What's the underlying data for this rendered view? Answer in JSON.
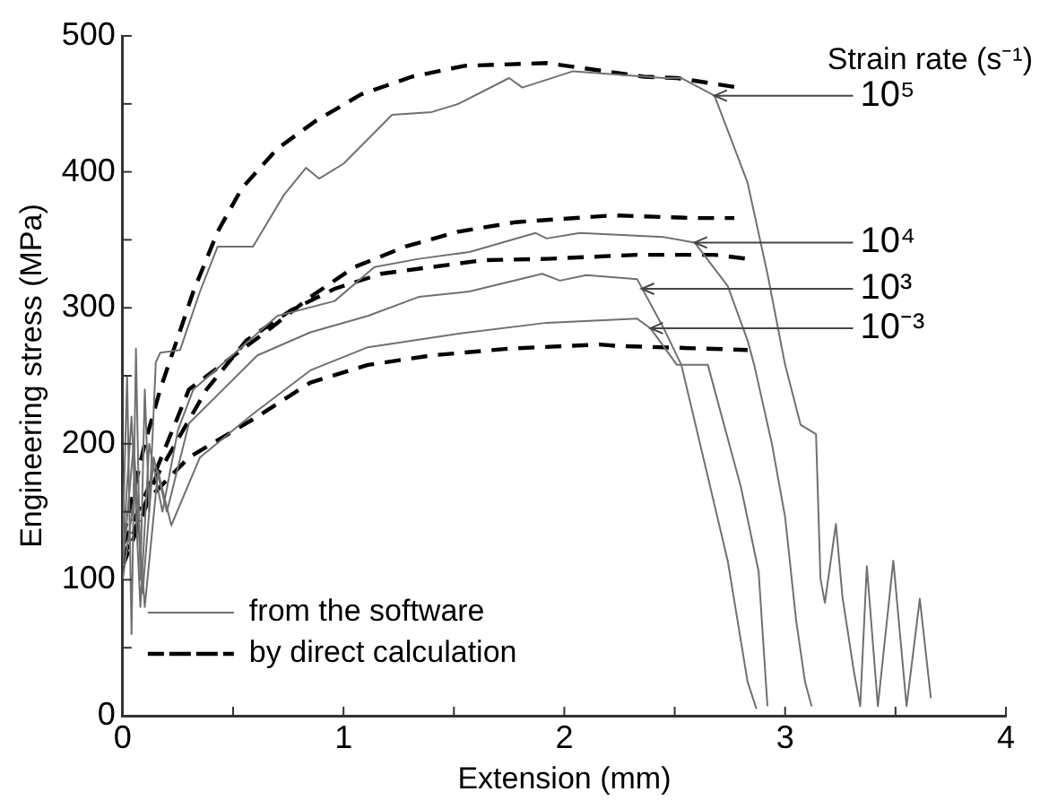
{
  "chart_data": {
    "type": "line",
    "xlabel": "Extension (mm)",
    "ylabel": "Engineering stress (MPa)",
    "xlim": [
      0,
      4
    ],
    "ylim": [
      0,
      500
    ],
    "xticks": [
      0,
      {
        "value": 0.5,
        "label": null
      },
      1,
      {
        "value": 1.5,
        "label": null
      },
      2,
      {
        "value": 2.5,
        "label": null
      },
      3,
      {
        "value": 3.5,
        "label": null
      },
      4
    ],
    "yticks": [
      0,
      {
        "value": 50,
        "label": null
      },
      100,
      {
        "value": 150,
        "label": null
      },
      200,
      {
        "value": 250,
        "label": null
      },
      300,
      {
        "value": 350,
        "label": null
      },
      400,
      {
        "value": 450,
        "label": null
      },
      500
    ],
    "grid": false,
    "legend": "bottom left",
    "marker": "none",
    "series": [
      {
        "name": "from the software",
        "color": "#707070",
        "line_style": "solid",
        "x": [
          0,
          0.02,
          0.04,
          0.06,
          0.08,
          0.1,
          0.12,
          0.15,
          0.17,
          0.26,
          0.35,
          0.43,
          0.59,
          0.73,
          0.83,
          0.89,
          1.0,
          1.22,
          1.4,
          1.52,
          1.75,
          1.81,
          2.04,
          2.45,
          2.53,
          2.68,
          2.83,
          2.92,
          3.0,
          3.07,
          3.14,
          3.16,
          3.18,
          3.23,
          3.26,
          3.31,
          3.34,
          3.37,
          3.42,
          3.49,
          3.55,
          3.61,
          3.66
        ],
        "values": [
          130,
          250,
          60,
          270,
          100,
          240,
          150,
          260,
          267,
          269,
          312,
          345,
          345,
          383,
          403,
          395,
          406,
          442,
          444,
          450,
          469,
          462,
          474,
          469,
          469,
          456,
          392,
          325,
          258,
          214,
          207,
          101,
          83,
          141,
          87,
          34,
          7,
          110,
          7,
          114,
          7,
          86,
          13
        ]
      },
      {
        "color": "#707070",
        "line_style": "solid",
        "x": [
          0,
          0.04,
          0.08,
          0.12,
          0.18,
          0.25,
          0.32,
          0.7,
          0.96,
          1.14,
          1.34,
          1.57,
          1.87,
          1.92,
          2.07,
          2.45,
          2.59,
          2.74,
          2.83,
          2.86,
          2.94,
          3.0,
          3.05,
          3.09,
          3.12
        ],
        "values": [
          120,
          220,
          80,
          200,
          150,
          210,
          240,
          294,
          305,
          330,
          336,
          341,
          355,
          351,
          355,
          352,
          348,
          316,
          276,
          258,
          200,
          146,
          70,
          25,
          7
        ]
      },
      {
        "color": "#707070",
        "line_style": "solid",
        "x": [
          0,
          0.05,
          0.09,
          0.14,
          0.2,
          0.3,
          0.61,
          0.85,
          1.11,
          1.34,
          1.57,
          1.9,
          1.98,
          2.1,
          2.33,
          2.45,
          2.53,
          2.74,
          2.83,
          2.87
        ],
        "values": [
          110,
          200,
          90,
          190,
          150,
          215,
          265,
          282,
          294,
          308,
          312,
          325,
          320,
          324,
          321,
          285,
          258,
          114,
          25,
          5
        ]
      },
      {
        "color": "#707070",
        "line_style": "solid",
        "x": [
          0,
          0.06,
          0.1,
          0.16,
          0.22,
          0.35,
          0.59,
          0.85,
          1.11,
          1.52,
          1.92,
          2.33,
          2.39,
          2.51,
          2.65,
          2.8,
          2.88,
          2.92
        ],
        "values": [
          100,
          170,
          80,
          180,
          140,
          190,
          222,
          254,
          271,
          281,
          289,
          292,
          285,
          258,
          258,
          168,
          106,
          7
        ]
      },
      {
        "name": "by direct calculation",
        "color": "#000000",
        "line_style": "dashed",
        "x": [
          0,
          0.1,
          0.17,
          0.32,
          0.43,
          0.54,
          0.7,
          0.87,
          1.08,
          1.31,
          1.55,
          1.92,
          2.36,
          2.51,
          2.79
        ],
        "values": [
          130,
          200,
          240,
          312,
          356,
          388,
          417,
          437,
          457,
          470,
          478,
          480,
          470,
          469,
          462
        ]
      },
      {
        "color": "#000000",
        "line_style": "dashed",
        "x": [
          0,
          0.15,
          0.3,
          0.67,
          0.85,
          1.05,
          1.28,
          1.52,
          1.78,
          2.22,
          2.59,
          2.77
        ],
        "values": [
          125,
          180,
          240,
          285,
          308,
          330,
          345,
          356,
          363,
          368,
          366,
          366
        ]
      },
      {
        "color": "#000000",
        "line_style": "dashed",
        "x": [
          0,
          0.15,
          0.38,
          0.56,
          0.76,
          0.96,
          1.17,
          1.4,
          1.63,
          1.92,
          2.33,
          2.68,
          2.83
        ],
        "values": [
          115,
          175,
          240,
          276,
          298,
          314,
          325,
          330,
          335,
          336,
          339,
          339,
          336
        ]
      },
      {
        "color": "#000000",
        "line_style": "dashed",
        "x": [
          0,
          0.12,
          0.3,
          0.59,
          0.85,
          1.11,
          1.4,
          1.75,
          2.16,
          2.24,
          2.83
        ],
        "values": [
          110,
          160,
          190,
          218,
          245,
          258,
          265,
          270,
          273,
          272,
          269
        ]
      }
    ],
    "annotations": [
      "Strain rate (s⁻¹)",
      {
        "text": "10⁵",
        "x": 2.68,
        "y": 456
      },
      {
        "text": "10⁴",
        "x": 2.59,
        "y": 348
      },
      {
        "text": "10³",
        "x": 2.35,
        "y": 314
      },
      {
        "text": "10⁻³",
        "x": 2.39,
        "y": 285
      }
    ]
  }
}
